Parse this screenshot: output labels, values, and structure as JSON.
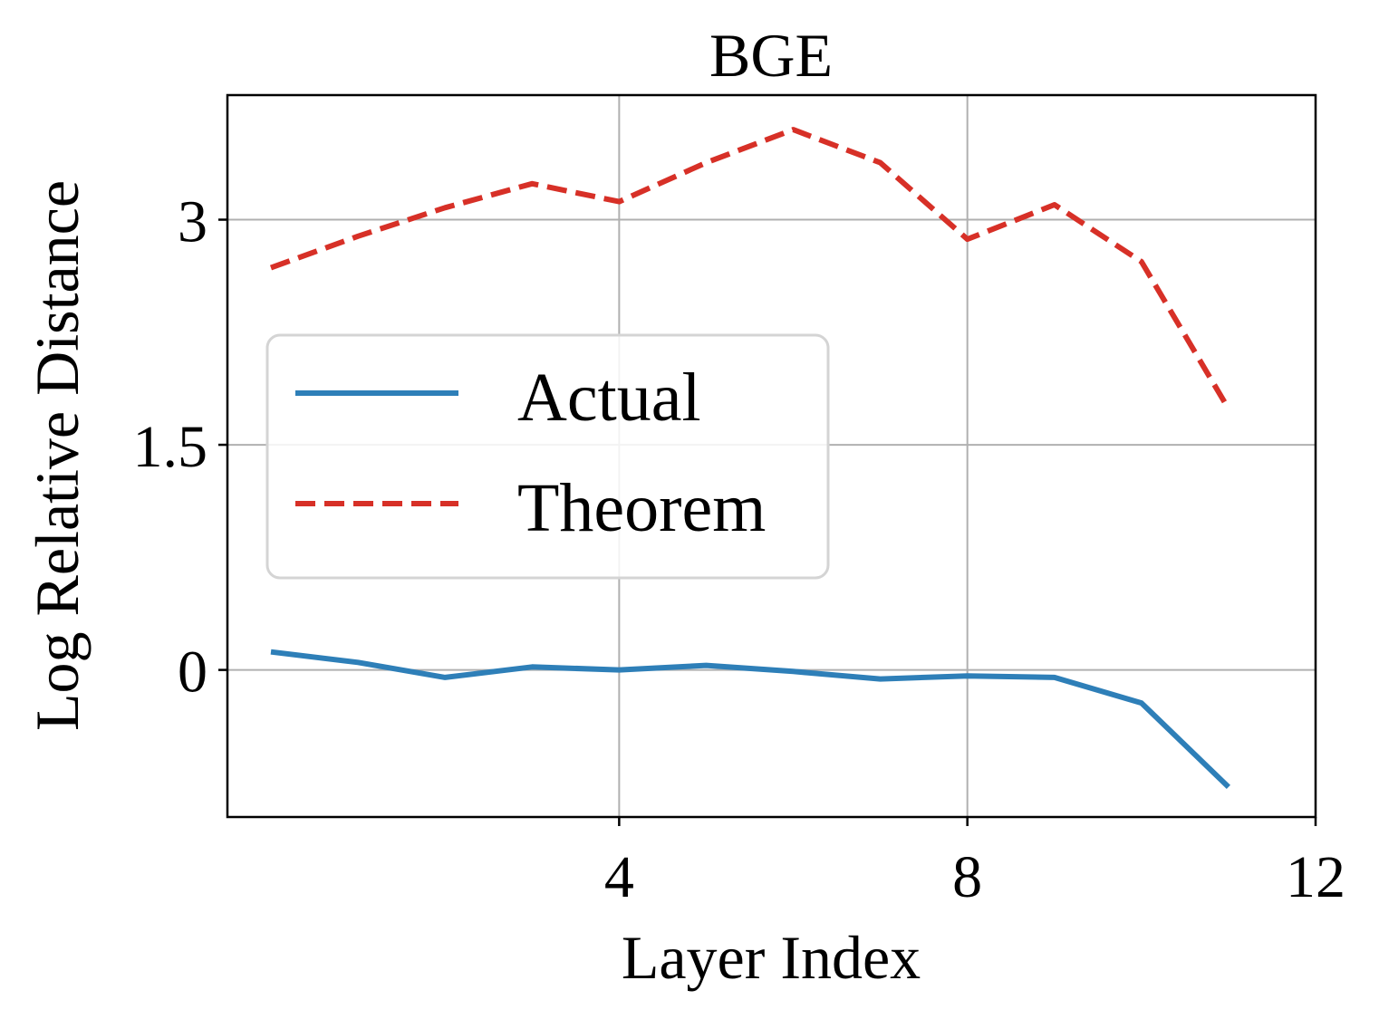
{
  "chart_data": {
    "type": "line",
    "title": "BGE",
    "xlabel": "Layer Index",
    "ylabel": "Log Relative Distance",
    "xlim": [
      -0.5,
      12
    ],
    "ylim": [
      -0.98,
      3.83
    ],
    "xticks": [
      4,
      8,
      12
    ],
    "yticks": [
      0,
      1.5,
      3
    ],
    "xtick_labels": [
      "4",
      "8",
      "12"
    ],
    "ytick_labels": [
      "0",
      "1.5",
      "3"
    ],
    "grid": true,
    "legend_position": "center-left",
    "x": [
      0,
      1,
      2,
      3,
      4,
      5,
      6,
      7,
      8,
      9,
      10,
      11
    ],
    "series": [
      {
        "name": "Actual",
        "color": "#2e7fb8",
        "style": "solid",
        "values": [
          0.12,
          0.05,
          -0.05,
          0.02,
          0.0,
          0.03,
          -0.01,
          -0.06,
          -0.04,
          -0.05,
          -0.22,
          -0.78
        ]
      },
      {
        "name": "Theorem",
        "color": "#d73027",
        "style": "dashed",
        "values": [
          2.68,
          2.89,
          3.08,
          3.24,
          3.12,
          3.38,
          3.6,
          3.38,
          2.87,
          3.1,
          2.72,
          1.74
        ]
      }
    ]
  }
}
